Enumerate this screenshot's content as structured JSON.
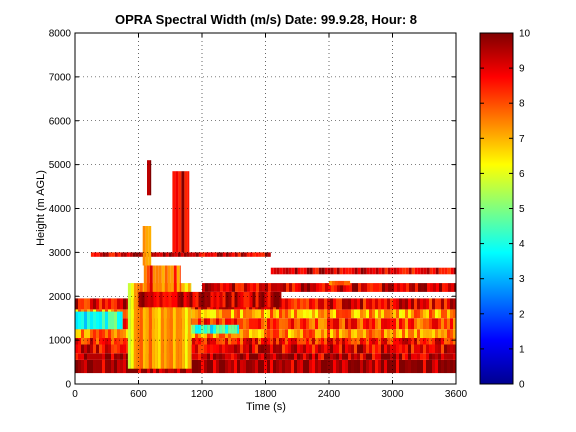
{
  "chart_data": {
    "type": "heatmap",
    "title": "OPRA Spectral Width (m/s)  Date: 99.9.28, Hour: 8",
    "xlabel": "Time (s)",
    "ylabel": "Height (m AGL)",
    "xlim": [
      0,
      3600
    ],
    "ylim": [
      0,
      8000
    ],
    "xticks": [
      0,
      600,
      1200,
      1800,
      2400,
      3000,
      3600
    ],
    "yticks": [
      0,
      1000,
      2000,
      3000,
      4000,
      5000,
      6000,
      7000,
      8000
    ],
    "grid": true,
    "colorbar": {
      "colormap": "jet",
      "clim": [
        0,
        10
      ],
      "ticks": [
        0,
        1,
        2,
        3,
        4,
        5,
        6,
        7,
        8,
        9,
        10
      ],
      "position": "right"
    },
    "regions": [
      {
        "x": [
          0,
          3600
        ],
        "y": [
          250,
          550
        ],
        "value": 9.6
      },
      {
        "x": [
          0,
          3600
        ],
        "y": [
          550,
          700
        ],
        "value": 9.3
      },
      {
        "x": [
          0,
          3600
        ],
        "y": [
          700,
          900
        ],
        "value": 9.0
      },
      {
        "x": [
          0,
          3600
        ],
        "y": [
          900,
          1050
        ],
        "value": 8.6
      },
      {
        "x": [
          0,
          3600
        ],
        "y": [
          1050,
          1250
        ],
        "value": 7.4
      },
      {
        "x": [
          0,
          3600
        ],
        "y": [
          1250,
          1500
        ],
        "value": 8.2
      },
      {
        "x": [
          0,
          3600
        ],
        "y": [
          1500,
          1700
        ],
        "value": 7.2
      },
      {
        "x": [
          0,
          3600
        ],
        "y": [
          1700,
          1950
        ],
        "value": 8.9
      },
      {
        "x": [
          0,
          450
        ],
        "y": [
          1250,
          1650
        ],
        "value": 4.0
      },
      {
        "x": [
          1050,
          1550
        ],
        "y": [
          1150,
          1350
        ],
        "value": 4.2
      },
      {
        "x": [
          500,
          1100
        ],
        "y": [
          350,
          2300
        ],
        "value": 6.8
      },
      {
        "x": [
          650,
          1000
        ],
        "y": [
          2000,
          2700
        ],
        "value": 8.0
      },
      {
        "x": [
          600,
          1950
        ],
        "y": [
          1750,
          2100
        ],
        "value": 9.4
      },
      {
        "x": [
          1200,
          3600
        ],
        "y": [
          2100,
          2300
        ],
        "value": 9.2
      },
      {
        "x": [
          150,
          1850
        ],
        "y": [
          2900,
          3000
        ],
        "value": 9.3
      },
      {
        "x": [
          1850,
          3600
        ],
        "y": [
          2500,
          2650
        ],
        "value": 9.1
      },
      {
        "x": [
          2400,
          2600
        ],
        "y": [
          2250,
          2350
        ],
        "value": 7.0
      },
      {
        "x": [
          640,
          720
        ],
        "y": [
          2700,
          3600
        ],
        "value": 7.5
      },
      {
        "x": [
          680,
          720
        ],
        "y": [
          4300,
          5100
        ],
        "value": 9.5
      },
      {
        "x": [
          920,
          1080
        ],
        "y": [
          3000,
          4850
        ],
        "value": 9.4
      }
    ]
  }
}
